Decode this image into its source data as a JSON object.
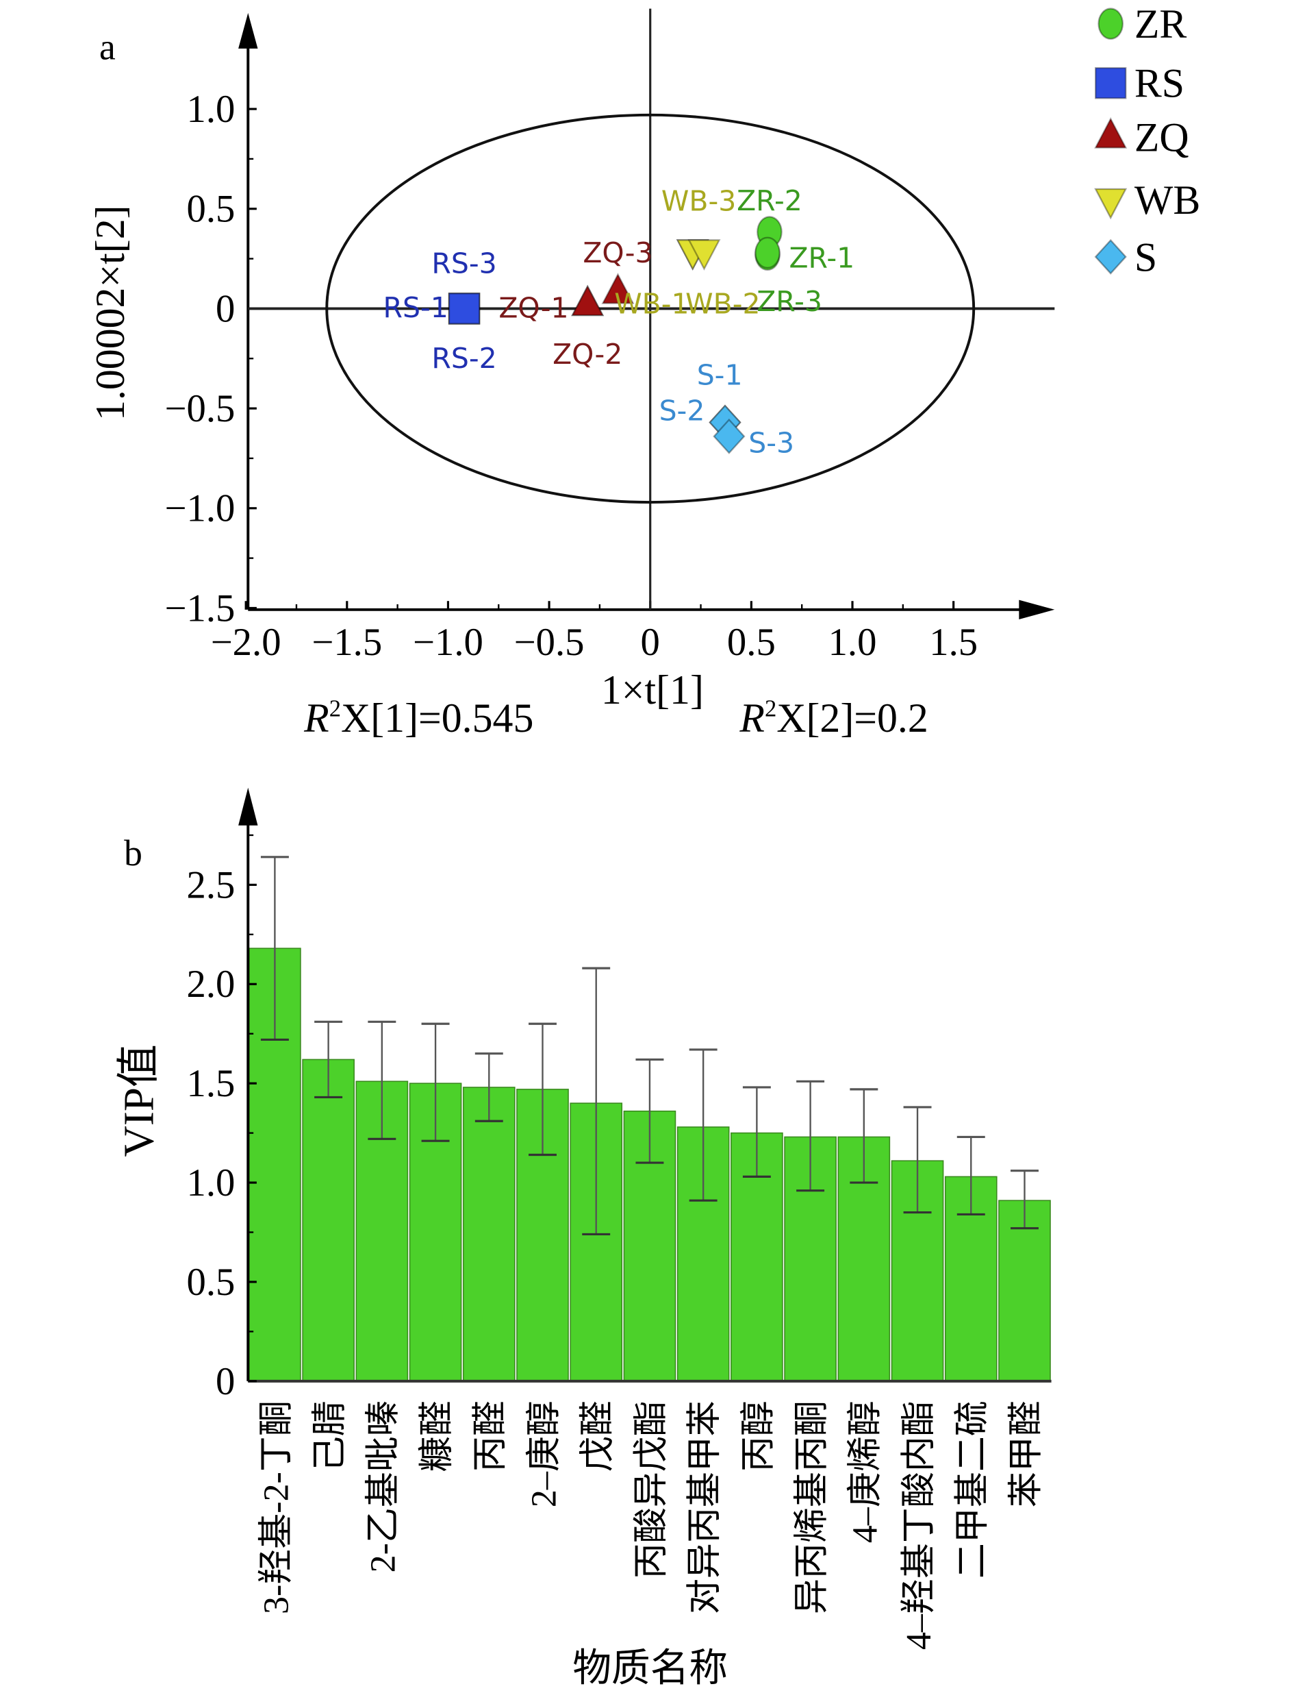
{
  "chart_data": [
    {
      "type": "scatter",
      "panel_label": "a",
      "xlabel": "1×t[1]",
      "ylabel": "1.00002×t[2]",
      "xlim": [
        -2.0,
        1.8
      ],
      "ylim": [
        -1.5,
        1.3
      ],
      "xticks": [
        "−2.0",
        "−1.5",
        "−1.0",
        "−0.5",
        "0",
        "0.5",
        "1.0",
        "1.5"
      ],
      "yticks": [
        "1.0",
        "0.5",
        "0",
        "−0.5",
        "−1.0",
        "−1.5"
      ],
      "annotations": {
        "r2x1": "X[1]=0.545",
        "r2x2": "X[2]=0.2",
        "r2_symbol": "R",
        "r2_sup": "2"
      },
      "legend_position": "top-right",
      "series": [
        {
          "name": "ZR",
          "marker": "circle",
          "color": "#4cd12a",
          "label_color": "#3a9a20",
          "points": [
            {
              "label": "ZR-1",
              "x": 0.58,
              "y": 0.27
            },
            {
              "label": "ZR-2",
              "x": 0.59,
              "y": 0.33
            },
            {
              "label": "ZR-3",
              "x": 0.58,
              "y": 0.28
            }
          ]
        },
        {
          "name": "RS",
          "marker": "square",
          "color": "#2e4de0",
          "label_color": "#2030b0",
          "points": [
            {
              "label": "RS-1",
              "x": -0.92,
              "y": 0.0
            },
            {
              "label": "RS-2",
              "x": -0.92,
              "y": 0.0
            },
            {
              "label": "RS-3",
              "x": -0.92,
              "y": 0.0
            }
          ]
        },
        {
          "name": "ZQ",
          "marker": "triangle-up",
          "color": "#a01010",
          "label_color": "#7a1a1a",
          "points": [
            {
              "label": "ZQ-1",
              "x": -0.31,
              "y": 0.02
            },
            {
              "label": "ZQ-2",
              "x": -0.31,
              "y": 0.02
            },
            {
              "label": "ZQ-3",
              "x": -0.16,
              "y": 0.08
            }
          ]
        },
        {
          "name": "WB",
          "marker": "triangle-down",
          "color": "#e0e030",
          "label_color": "#a8a820",
          "points": [
            {
              "label": "WB-1",
              "x": 0.21,
              "y": 0.29
            },
            {
              "label": "WB-2",
              "x": 0.21,
              "y": 0.29
            },
            {
              "label": "WB-3",
              "x": 0.24,
              "y": 0.29
            }
          ]
        },
        {
          "name": "S",
          "marker": "diamond",
          "color": "#4ab8ef",
          "label_color": "#3a8ad0",
          "points": [
            {
              "label": "S-1",
              "x": 0.37,
              "y": -0.57
            },
            {
              "label": "S-2",
              "x": 0.37,
              "y": -0.57
            },
            {
              "label": "S-3",
              "x": 0.39,
              "y": -0.64
            }
          ]
        }
      ],
      "ellipse": {
        "center": [
          0,
          0
        ],
        "semi_x": 1.6,
        "semi_y": 0.97
      }
    },
    {
      "type": "bar",
      "panel_label": "b",
      "xlabel": "物质名称",
      "ylabel": "VIP值",
      "ylim": [
        0,
        2.8
      ],
      "yticks": [
        "0",
        "0.5",
        "1.0",
        "1.5",
        "2.0",
        "2.5"
      ],
      "bar_color": "#4cd12a",
      "categories": [
        "3-羟基-2-丁酮",
        "己腈",
        "2-乙基吡嗪",
        "糠醛",
        "丙醛",
        "2–庚醇",
        "戊醛",
        "丙酸异戊酯",
        "对异丙基甲苯",
        "丙醇",
        "异丙烯基丙酮",
        "4–庚烯醇",
        "4–羟基丁酸内酯",
        "二甲基二硫",
        "苯甲醛"
      ],
      "values": [
        2.18,
        1.62,
        1.51,
        1.5,
        1.48,
        1.47,
        1.4,
        1.36,
        1.28,
        1.25,
        1.23,
        1.23,
        1.11,
        1.03,
        0.91
      ],
      "error_upper": [
        2.64,
        1.81,
        1.81,
        1.8,
        1.65,
        1.8,
        2.08,
        1.62,
        1.67,
        1.48,
        1.51,
        1.47,
        1.38,
        1.23,
        1.06
      ],
      "error_lower": [
        1.72,
        1.43,
        1.22,
        1.21,
        1.31,
        1.14,
        0.74,
        1.1,
        0.91,
        1.03,
        0.96,
        1.0,
        0.85,
        0.84,
        0.77
      ]
    }
  ]
}
